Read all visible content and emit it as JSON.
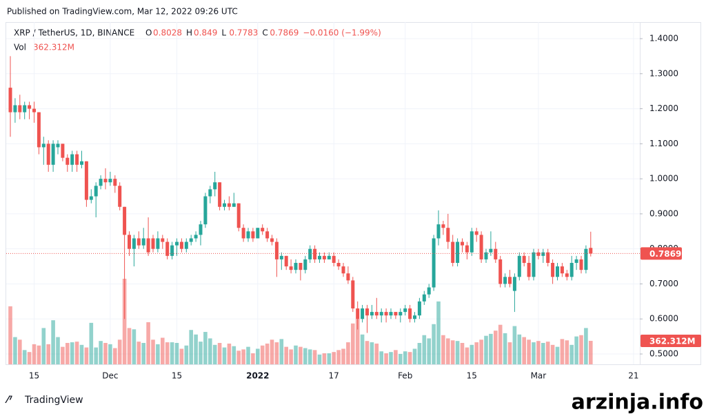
{
  "published": "Published on TradingView.com, Mar 12, 2022 09:26 UTC",
  "brand": "TradingView",
  "watermark": "arzinja.info",
  "chart_data": {
    "type": "candlestick",
    "symbol": "XRP / TetherUS, 1D, BINANCE",
    "ohlc_letters": [
      "O",
      "H",
      "L",
      "C"
    ],
    "change": "−0.0160 (−1.99%)",
    "volume_title": "Vol",
    "last_volume_label": "362.312M",
    "up_color": "#26a69a",
    "down_color": "#ef5350",
    "grid": true,
    "ylim": [
      0.4705,
      1.4473
    ],
    "yticks": [
      {
        "value": 0.5,
        "label": "0.5000"
      },
      {
        "value": 0.6,
        "label": "0.6000"
      },
      {
        "value": 0.7,
        "label": "0.7000"
      },
      {
        "value": 0.8,
        "label": "0.8000"
      },
      {
        "value": 0.9,
        "label": "0.9000"
      },
      {
        "value": 1.0,
        "label": "1.0000"
      },
      {
        "value": 1.1,
        "label": "1.1000"
      },
      {
        "value": 1.2,
        "label": "1.2000"
      },
      {
        "value": 1.3,
        "label": "1.3000"
      },
      {
        "value": 1.4,
        "label": "1.4000"
      }
    ],
    "categories": [
      null,
      null,
      null,
      null,
      null,
      "15",
      null,
      null,
      null,
      null,
      null,
      null,
      null,
      null,
      null,
      null,
      null,
      null,
      null,
      null,
      null,
      "Dec",
      null,
      null,
      null,
      null,
      null,
      null,
      null,
      null,
      null,
      null,
      null,
      null,
      null,
      "15",
      null,
      null,
      null,
      null,
      null,
      null,
      null,
      null,
      null,
      null,
      null,
      null,
      null,
      null,
      null,
      null,
      "2022",
      null,
      null,
      null,
      null,
      null,
      null,
      null,
      null,
      null,
      null,
      null,
      null,
      null,
      null,
      null,
      "17",
      null,
      null,
      null,
      null,
      null,
      null,
      null,
      null,
      null,
      null,
      null,
      null,
      null,
      null,
      "Feb",
      null,
      null,
      null,
      null,
      null,
      null,
      null,
      null,
      null,
      null,
      null,
      null,
      null,
      "15",
      null,
      null,
      null,
      null,
      null,
      null,
      null,
      null,
      null,
      null,
      null,
      null,
      null,
      "Mar",
      null,
      null,
      null,
      null,
      null,
      null,
      null,
      null,
      null,
      null,
      null,
      null,
      null,
      null,
      null,
      null,
      null,
      null,
      null,
      "21"
    ],
    "ohlc": [
      [
        1.26,
        1.35,
        1.12,
        1.19
      ],
      [
        1.19,
        1.23,
        1.16,
        1.21
      ],
      [
        1.21,
        1.24,
        1.17,
        1.19
      ],
      [
        1.19,
        1.22,
        1.17,
        1.21
      ],
      [
        1.21,
        1.22,
        1.17,
        1.2
      ],
      [
        1.2,
        1.22,
        1.16,
        1.19
      ],
      [
        1.19,
        1.19,
        1.07,
        1.09
      ],
      [
        1.09,
        1.12,
        1.04,
        1.1
      ],
      [
        1.1,
        1.11,
        1.02,
        1.04
      ],
      [
        1.04,
        1.11,
        1.02,
        1.1
      ],
      [
        1.09,
        1.11,
        1.07,
        1.1
      ],
      [
        1.1,
        1.1,
        1.05,
        1.06
      ],
      [
        1.06,
        1.07,
        1.02,
        1.04
      ],
      [
        1.04,
        1.08,
        1.02,
        1.07
      ],
      [
        1.07,
        1.08,
        1.02,
        1.04
      ],
      [
        1.04,
        1.08,
        1.03,
        1.05
      ],
      [
        1.05,
        1.05,
        0.92,
        0.94
      ],
      [
        0.94,
        0.97,
        0.93,
        0.95
      ],
      [
        0.95,
        0.99,
        0.89,
        0.98
      ],
      [
        0.98,
        1.01,
        0.97,
        1.0
      ],
      [
        1.0,
        1.03,
        0.97,
        0.99
      ],
      [
        0.99,
        1.02,
        0.98,
        1.0
      ],
      [
        1.0,
        1.01,
        0.96,
        0.98
      ],
      [
        0.98,
        0.99,
        0.91,
        0.92
      ],
      [
        0.92,
        0.92,
        0.6,
        0.84
      ],
      [
        0.84,
        0.85,
        0.78,
        0.8
      ],
      [
        0.8,
        0.84,
        0.75,
        0.83
      ],
      [
        0.83,
        0.85,
        0.8,
        0.81
      ],
      [
        0.81,
        0.86,
        0.8,
        0.83
      ],
      [
        0.83,
        0.89,
        0.78,
        0.79
      ],
      [
        0.83,
        0.84,
        0.79,
        0.8
      ],
      [
        0.8,
        0.85,
        0.79,
        0.83
      ],
      [
        0.83,
        0.84,
        0.8,
        0.82
      ],
      [
        0.82,
        0.83,
        0.77,
        0.78
      ],
      [
        0.78,
        0.82,
        0.77,
        0.81
      ],
      [
        0.81,
        0.83,
        0.78,
        0.82
      ],
      [
        0.82,
        0.83,
        0.79,
        0.8
      ],
      [
        0.8,
        0.83,
        0.79,
        0.82
      ],
      [
        0.82,
        0.84,
        0.81,
        0.83
      ],
      [
        0.83,
        0.85,
        0.82,
        0.84
      ],
      [
        0.84,
        0.88,
        0.81,
        0.87
      ],
      [
        0.87,
        0.96,
        0.86,
        0.95
      ],
      [
        0.95,
        0.98,
        0.93,
        0.97
      ],
      [
        0.97,
        1.02,
        0.95,
        0.99
      ],
      [
        0.99,
        0.99,
        0.91,
        0.92
      ],
      [
        0.92,
        0.94,
        0.91,
        0.93
      ],
      [
        0.93,
        0.95,
        0.91,
        0.92
      ],
      [
        0.92,
        0.96,
        0.92,
        0.93
      ],
      [
        0.93,
        0.93,
        0.85,
        0.86
      ],
      [
        0.86,
        0.87,
        0.82,
        0.83
      ],
      [
        0.83,
        0.86,
        0.82,
        0.85
      ],
      [
        0.85,
        0.86,
        0.82,
        0.83
      ],
      [
        0.83,
        0.86,
        0.83,
        0.86
      ],
      [
        0.86,
        0.87,
        0.84,
        0.85
      ],
      [
        0.85,
        0.86,
        0.82,
        0.83
      ],
      [
        0.83,
        0.84,
        0.81,
        0.82
      ],
      [
        0.82,
        0.83,
        0.72,
        0.77
      ],
      [
        0.77,
        0.79,
        0.74,
        0.78
      ],
      [
        0.78,
        0.78,
        0.74,
        0.75
      ],
      [
        0.75,
        0.77,
        0.73,
        0.74
      ],
      [
        0.74,
        0.77,
        0.73,
        0.76
      ],
      [
        0.76,
        0.76,
        0.71,
        0.74
      ],
      [
        0.74,
        0.78,
        0.73,
        0.77
      ],
      [
        0.77,
        0.81,
        0.76,
        0.8
      ],
      [
        0.8,
        0.81,
        0.76,
        0.77
      ],
      [
        0.77,
        0.79,
        0.76,
        0.78
      ],
      [
        0.78,
        0.79,
        0.76,
        0.77
      ],
      [
        0.77,
        0.79,
        0.77,
        0.78
      ],
      [
        0.78,
        0.79,
        0.75,
        0.76
      ],
      [
        0.76,
        0.77,
        0.74,
        0.75
      ],
      [
        0.75,
        0.76,
        0.72,
        0.73
      ],
      [
        0.73,
        0.75,
        0.7,
        0.71
      ],
      [
        0.71,
        0.72,
        0.62,
        0.63
      ],
      [
        0.63,
        0.65,
        0.57,
        0.6
      ],
      [
        0.6,
        0.64,
        0.59,
        0.63
      ],
      [
        0.63,
        0.64,
        0.56,
        0.61
      ],
      [
        0.61,
        0.64,
        0.6,
        0.62
      ],
      [
        0.62,
        0.66,
        0.6,
        0.61
      ],
      [
        0.61,
        0.63,
        0.59,
        0.62
      ],
      [
        0.62,
        0.63,
        0.59,
        0.61
      ],
      [
        0.61,
        0.63,
        0.6,
        0.62
      ],
      [
        0.62,
        0.62,
        0.6,
        0.61
      ],
      [
        0.61,
        0.63,
        0.59,
        0.62
      ],
      [
        0.62,
        0.64,
        0.61,
        0.63
      ],
      [
        0.63,
        0.64,
        0.59,
        0.6
      ],
      [
        0.6,
        0.62,
        0.59,
        0.61
      ],
      [
        0.61,
        0.66,
        0.6,
        0.65
      ],
      [
        0.65,
        0.68,
        0.64,
        0.67
      ],
      [
        0.67,
        0.7,
        0.66,
        0.69
      ],
      [
        0.69,
        0.84,
        0.68,
        0.83
      ],
      [
        0.83,
        0.91,
        0.81,
        0.87
      ],
      [
        0.87,
        0.88,
        0.84,
        0.86
      ],
      [
        0.86,
        0.9,
        0.8,
        0.82
      ],
      [
        0.82,
        0.84,
        0.75,
        0.76
      ],
      [
        0.76,
        0.83,
        0.75,
        0.82
      ],
      [
        0.82,
        0.83,
        0.79,
        0.81
      ],
      [
        0.81,
        0.82,
        0.77,
        0.79
      ],
      [
        0.79,
        0.86,
        0.78,
        0.85
      ],
      [
        0.85,
        0.86,
        0.82,
        0.84
      ],
      [
        0.84,
        0.85,
        0.76,
        0.77
      ],
      [
        0.77,
        0.8,
        0.76,
        0.79
      ],
      [
        0.79,
        0.85,
        0.78,
        0.8
      ],
      [
        0.8,
        0.82,
        0.76,
        0.77
      ],
      [
        0.77,
        0.78,
        0.69,
        0.7
      ],
      [
        0.7,
        0.73,
        0.69,
        0.72
      ],
      [
        0.72,
        0.74,
        0.69,
        0.7
      ],
      [
        0.68,
        0.73,
        0.62,
        0.72
      ],
      [
        0.72,
        0.79,
        0.71,
        0.78
      ],
      [
        0.78,
        0.79,
        0.75,
        0.76
      ],
      [
        0.76,
        0.78,
        0.71,
        0.72
      ],
      [
        0.72,
        0.8,
        0.71,
        0.79
      ],
      [
        0.79,
        0.8,
        0.77,
        0.78
      ],
      [
        0.78,
        0.8,
        0.76,
        0.79
      ],
      [
        0.79,
        0.8,
        0.75,
        0.76
      ],
      [
        0.76,
        0.77,
        0.7,
        0.72
      ],
      [
        0.72,
        0.76,
        0.71,
        0.75
      ],
      [
        0.75,
        0.76,
        0.72,
        0.73
      ],
      [
        0.73,
        0.74,
        0.71,
        0.72
      ],
      [
        0.72,
        0.78,
        0.71,
        0.76
      ],
      [
        0.76,
        0.78,
        0.74,
        0.77
      ],
      [
        0.77,
        0.78,
        0.73,
        0.74
      ],
      [
        0.74,
        0.81,
        0.73,
        0.8
      ],
      [
        0.8028,
        0.849,
        0.7783,
        0.7869
      ],
      null,
      null,
      null,
      null,
      null,
      null,
      null,
      null,
      null
    ],
    "volume": [
      895,
      420,
      380,
      220,
      190,
      310,
      290,
      560,
      310,
      680,
      420,
      270,
      330,
      340,
      350,
      300,
      260,
      640,
      260,
      360,
      330,
      310,
      250,
      380,
      1320,
      560,
      540,
      350,
      330,
      650,
      380,
      310,
      410,
      340,
      340,
      330,
      240,
      290,
      530,
      460,
      350,
      500,
      400,
      300,
      330,
      260,
      320,
      280,
      210,
      230,
      270,
      170,
      240,
      290,
      320,
      380,
      340,
      390,
      270,
      230,
      290,
      270,
      250,
      230,
      220,
      150,
      170,
      170,
      190,
      220,
      240,
      340,
      630,
      700,
      460,
      360,
      340,
      320,
      200,
      170,
      190,
      220,
      160,
      200,
      190,
      240,
      330,
      450,
      400,
      620,
      970,
      450,
      400,
      370,
      360,
      330,
      260,
      300,
      340,
      380,
      440,
      470,
      520,
      610,
      480,
      340,
      590,
      460,
      420,
      380,
      340,
      360,
      330,
      350,
      300,
      270,
      390,
      370,
      300,
      430,
      450,
      560,
      362.312,
      null,
      null,
      null,
      null,
      null,
      null,
      null,
      null,
      null
    ]
  }
}
